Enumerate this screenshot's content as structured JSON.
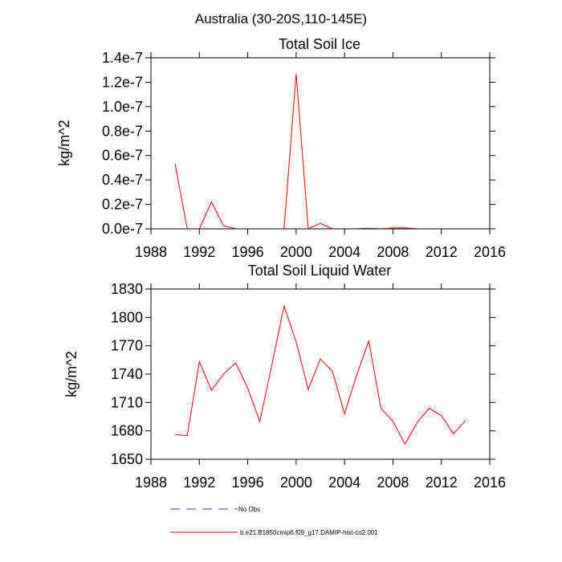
{
  "figure_title": "Australia (30-20S,110-145E)",
  "chart_data": [
    {
      "type": "line",
      "title": "Total Soil Ice",
      "xlabel": "",
      "ylabel": "kg/m^2",
      "xlim": [
        1988,
        2016
      ],
      "ylim": [
        0,
        1.4e-07
      ],
      "xticks": [
        1988,
        1992,
        1996,
        2000,
        2004,
        2008,
        2012,
        2016
      ],
      "xtick_labels": [
        "1988",
        "1992",
        "1996",
        "2000",
        "2004",
        "2008",
        "2012",
        "2016"
      ],
      "yticks": [
        0,
        2e-08,
        4e-08,
        6e-08,
        8e-08,
        1e-07,
        1.2e-07,
        1.4e-07
      ],
      "ytick_labels": [
        "0.0e-7",
        "0.2e-7",
        "0.4e-7",
        "0.6e-7",
        "0.8e-7",
        "1.0e-7",
        "1.2e-7",
        "1.4e-7"
      ],
      "grid": false,
      "x": [
        1990,
        1991,
        1992,
        1993,
        1994,
        1995,
        1996,
        1997,
        1998,
        1999,
        2000,
        2001,
        2002,
        2003,
        2004,
        2005,
        2006,
        2007,
        2008,
        2009,
        2010,
        2011,
        2012,
        2013,
        2014
      ],
      "series": [
        {
          "name": "b.e21.B1850cmip6.f09_g17.DAMIP-hist-co2.001",
          "color": "#ff0000",
          "values": [
            5.3e-08,
            0,
            0,
            2.2e-08,
            2.5e-09,
            0,
            0,
            0,
            0,
            0,
            1.27e-07,
            0,
            4.5e-09,
            0,
            0,
            0,
            5e-10,
            0,
            7e-10,
            7e-10,
            0,
            0,
            0,
            0,
            0
          ]
        }
      ]
    },
    {
      "type": "line",
      "title": "Total Soil Liquid Water",
      "xlabel": "",
      "ylabel": "kg/m^2",
      "xlim": [
        1988,
        2016
      ],
      "ylim": [
        1650,
        1830
      ],
      "xticks": [
        1988,
        1992,
        1996,
        2000,
        2004,
        2008,
        2012,
        2016
      ],
      "xtick_labels": [
        "1988",
        "1992",
        "1996",
        "2000",
        "2004",
        "2008",
        "2012",
        "2016"
      ],
      "yticks": [
        1650,
        1680,
        1710,
        1740,
        1770,
        1800,
        1830
      ],
      "ytick_labels": [
        "1650",
        "1680",
        "1710",
        "1740",
        "1770",
        "1800",
        "1830"
      ],
      "grid": false,
      "x": [
        1990,
        1991,
        1992,
        1993,
        1994,
        1995,
        1996,
        1997,
        1998,
        1999,
        2000,
        2001,
        2002,
        2003,
        2004,
        2005,
        2006,
        2007,
        2008,
        2009,
        2010,
        2011,
        2012,
        2013,
        2014
      ],
      "series": [
        {
          "name": "b.e21.B1850cmip6.f09_g17.DAMIP-hist-co2.001",
          "color": "#ff0000",
          "values": [
            1676,
            1675,
            1753,
            1723,
            1740,
            1752,
            1725,
            1690,
            1750,
            1812,
            1774,
            1724,
            1756,
            1743,
            1698,
            1739,
            1775,
            1704,
            1690,
            1666,
            1689,
            1704,
            1696,
            1677,
            1691
          ]
        }
      ]
    }
  ],
  "legend": {
    "position": "bottom",
    "items": [
      {
        "label": "No Obs",
        "color": "#3333cc",
        "style": "dashed"
      },
      {
        "label": "b.e21.B1850cmip6.f09_g17.DAMIP-hist-co2.001",
        "color": "#ff0000",
        "style": "solid"
      }
    ]
  }
}
